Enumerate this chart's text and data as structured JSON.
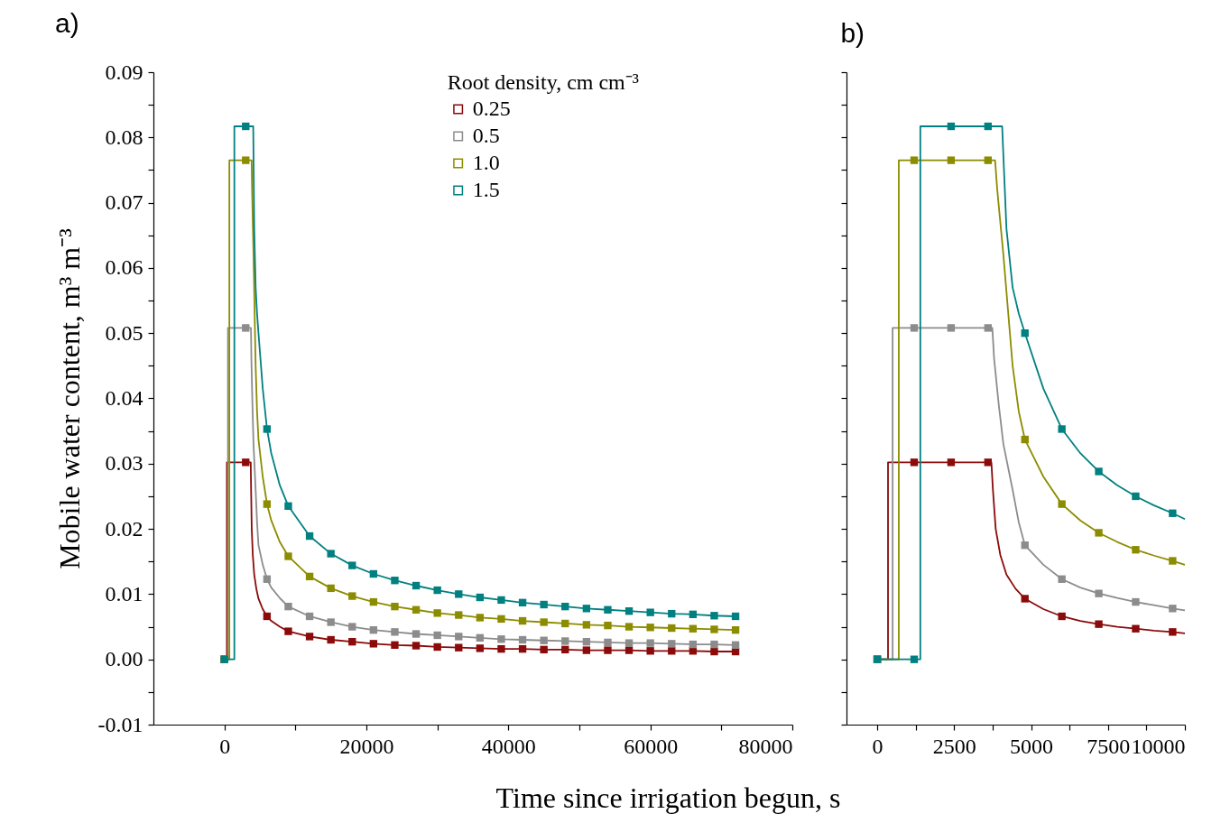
{
  "chart_data": [
    {
      "type": "line",
      "title": "a)",
      "xlabel": "Time since irrigation begun, s",
      "ylabel": "Mobile water content, m³ m⁻³",
      "legend_title": "Root density, cm cm⁻³",
      "legend": "top",
      "grid": false,
      "marker": "square",
      "xlim": [
        -10000,
        80000
      ],
      "xticks": [
        0,
        {
          "value": 10000,
          "label": null
        },
        20000,
        {
          "value": 30000,
          "label": null
        },
        40000,
        {
          "value": 50000,
          "label": null
        },
        60000,
        {
          "value": 70000,
          "label": null
        },
        80000
      ],
      "ylim": [
        -0.01,
        0.09
      ],
      "yticks": [
        -0.01,
        {
          "value": -0.005,
          "label": null
        },
        {
          "value": 0,
          "label": "0.00"
        },
        {
          "value": 0.005,
          "label": null
        },
        0.01,
        {
          "value": 0.015,
          "label": null
        },
        0.02,
        {
          "value": 0.025,
          "label": null
        },
        0.03,
        {
          "value": 0.035,
          "label": null
        },
        0.04,
        {
          "value": 0.045,
          "label": null
        },
        0.05,
        {
          "value": 0.055,
          "label": null
        },
        0.06,
        {
          "value": 0.065,
          "label": null
        },
        0.07,
        {
          "value": 0.075,
          "label": null
        },
        0.08,
        {
          "value": 0.085,
          "label": null
        },
        0.09
      ],
      "series": [
        {
          "name": "0.25",
          "type": "line",
          "marker": "none",
          "color": "#8b0a0a",
          "x": [
            0,
            350,
            350,
            3710,
            3760,
            3850,
            4000,
            4200,
            4500,
            4800,
            5400,
            6000,
            6600,
            7800,
            9000,
            12000,
            15000,
            18000,
            21000,
            24000,
            27000,
            30000,
            33000,
            36000,
            39000,
            42000,
            45000,
            48000,
            51000,
            54000,
            57000,
            60000,
            63000,
            66000,
            69000,
            72000
          ],
          "values": [
            0,
            0,
            0.0302,
            0.0302,
            0.026,
            0.02,
            0.016,
            0.013,
            0.0108,
            0.0093,
            0.0077,
            0.0066,
            0.0059,
            0.005,
            0.0043,
            0.0035,
            0.003,
            0.0027,
            0.0024,
            0.0022,
            0.0021,
            0.0019,
            0.0018,
            0.0017,
            0.0016,
            0.0016,
            0.0015,
            0.0015,
            0.0014,
            0.0014,
            0.0014,
            0.0013,
            0.0013,
            0.0013,
            0.0012,
            0.0012
          ]
        },
        {
          "name": "0.5",
          "type": "line",
          "marker": "none",
          "color": "#8c8c8c",
          "x": [
            0,
            500,
            500,
            3740,
            3800,
            3950,
            4100,
            4400,
            4600,
            4800,
            5400,
            6000,
            6600,
            7800,
            9000,
            12000,
            15000,
            18000,
            21000,
            24000,
            27000,
            30000,
            33000,
            36000,
            39000,
            42000,
            45000,
            48000,
            51000,
            54000,
            57000,
            60000,
            63000,
            66000,
            69000,
            72000
          ],
          "values": [
            0,
            0,
            0.0508,
            0.0508,
            0.046,
            0.039,
            0.033,
            0.026,
            0.021,
            0.0175,
            0.0145,
            0.0123,
            0.011,
            0.0094,
            0.0081,
            0.0066,
            0.0057,
            0.005,
            0.0045,
            0.0042,
            0.0039,
            0.0037,
            0.0035,
            0.0033,
            0.0031,
            0.003,
            0.0029,
            0.0028,
            0.0027,
            0.0026,
            0.0025,
            0.0025,
            0.0024,
            0.0023,
            0.0023,
            0.0022
          ]
        },
        {
          "name": "1.0",
          "type": "line",
          "marker": "none",
          "color": "#8c8c00",
          "x": [
            0,
            700,
            700,
            3830,
            3900,
            4100,
            4400,
            4600,
            4800,
            5400,
            6000,
            6600,
            7800,
            9000,
            12000,
            15000,
            18000,
            21000,
            24000,
            27000,
            30000,
            33000,
            36000,
            39000,
            42000,
            45000,
            48000,
            51000,
            54000,
            57000,
            60000,
            63000,
            66000,
            69000,
            72000
          ],
          "values": [
            0,
            0,
            0.0765,
            0.0765,
            0.072,
            0.062,
            0.045,
            0.038,
            0.0337,
            0.028,
            0.0238,
            0.0213,
            0.018,
            0.0158,
            0.0127,
            0.0109,
            0.0097,
            0.0088,
            0.0081,
            0.0076,
            0.0071,
            0.0068,
            0.0064,
            0.0062,
            0.0059,
            0.0057,
            0.0055,
            0.0053,
            0.0052,
            0.005,
            0.0049,
            0.0048,
            0.0047,
            0.0046,
            0.0045
          ]
        },
        {
          "name": "1.5",
          "type": "line",
          "marker": "none",
          "color": "#008080",
          "x": [
            0,
            1400,
            1400,
            4060,
            4200,
            4400,
            4600,
            4800,
            5400,
            6000,
            6600,
            7800,
            9000,
            12000,
            15000,
            18000,
            21000,
            24000,
            27000,
            30000,
            33000,
            36000,
            39000,
            42000,
            45000,
            48000,
            51000,
            54000,
            57000,
            60000,
            63000,
            66000,
            69000,
            72000
          ],
          "values": [
            0,
            0,
            0.0817,
            0.0817,
            0.066,
            0.057,
            0.053,
            0.05,
            0.0415,
            0.0353,
            0.0316,
            0.0267,
            0.0235,
            0.0189,
            0.0162,
            0.0144,
            0.0131,
            0.0121,
            0.0113,
            0.0106,
            0.01,
            0.0095,
            0.0091,
            0.0087,
            0.0084,
            0.0081,
            0.0078,
            0.0076,
            0.0074,
            0.0072,
            0.007,
            0.0069,
            0.0067,
            0.0066
          ]
        },
        {
          "type": "scatter",
          "color": "#8b0a0a",
          "x": [
            0,
            3000,
            6000,
            9000,
            12000,
            15000,
            18000,
            21000,
            24000,
            27000,
            30000,
            33000,
            36000,
            39000,
            42000,
            45000,
            48000,
            51000,
            54000,
            57000,
            60000,
            63000,
            66000,
            69000,
            72000
          ],
          "values": [
            0,
            0.0302,
            0.0066,
            0.0043,
            0.0035,
            0.003,
            0.0027,
            0.0024,
            0.0022,
            0.0021,
            0.0019,
            0.0018,
            0.0017,
            0.0016,
            0.0016,
            0.0015,
            0.0015,
            0.0014,
            0.0014,
            0.0014,
            0.0013,
            0.0013,
            0.0013,
            0.0012,
            0.0012
          ]
        },
        {
          "type": "scatter",
          "color": "#8c8c8c",
          "x": [
            0,
            3000,
            6000,
            9000,
            12000,
            15000,
            18000,
            21000,
            24000,
            27000,
            30000,
            33000,
            36000,
            39000,
            42000,
            45000,
            48000,
            51000,
            54000,
            57000,
            60000,
            63000,
            66000,
            69000,
            72000
          ],
          "values": [
            0,
            0.0508,
            0.0123,
            0.0081,
            0.0066,
            0.0057,
            0.005,
            0.0045,
            0.0042,
            0.0039,
            0.0037,
            0.0035,
            0.0033,
            0.0031,
            0.003,
            0.0029,
            0.0028,
            0.0027,
            0.0026,
            0.0025,
            0.0025,
            0.0024,
            0.0023,
            0.0023,
            0.0022
          ]
        },
        {
          "type": "scatter",
          "color": "#8c8c00",
          "x": [
            0,
            3000,
            6000,
            9000,
            12000,
            15000,
            18000,
            21000,
            24000,
            27000,
            30000,
            33000,
            36000,
            39000,
            42000,
            45000,
            48000,
            51000,
            54000,
            57000,
            60000,
            63000,
            66000,
            69000,
            72000
          ],
          "values": [
            0,
            0.0765,
            0.0238,
            0.0158,
            0.0127,
            0.0109,
            0.0097,
            0.0088,
            0.0081,
            0.0076,
            0.0071,
            0.0068,
            0.0064,
            0.0062,
            0.0059,
            0.0057,
            0.0055,
            0.0053,
            0.0052,
            0.005,
            0.0049,
            0.0048,
            0.0047,
            0.0046,
            0.0045
          ]
        },
        {
          "type": "scatter",
          "color": "#008080",
          "x": [
            0,
            3000,
            6000,
            9000,
            12000,
            15000,
            18000,
            21000,
            24000,
            27000,
            30000,
            33000,
            36000,
            39000,
            42000,
            45000,
            48000,
            51000,
            54000,
            57000,
            60000,
            63000,
            66000,
            69000,
            72000
          ],
          "values": [
            0,
            0.0817,
            0.0353,
            0.0235,
            0.0189,
            0.0162,
            0.0144,
            0.0131,
            0.0121,
            0.0113,
            0.0106,
            0.01,
            0.0095,
            0.0091,
            0.0087,
            0.0084,
            0.0081,
            0.0078,
            0.0076,
            0.0074,
            0.0072,
            0.007,
            0.0069,
            0.0067,
            0.0066
          ]
        }
      ]
    },
    {
      "type": "line",
      "title": "b)",
      "grid": false,
      "marker": "square",
      "tick_labels": "x",
      "xlim": [
        -1000,
        10000
      ],
      "xticks": [
        0,
        {
          "value": 1250,
          "label": null
        },
        2500,
        {
          "value": 3750,
          "label": null
        },
        5000,
        {
          "value": 6250,
          "label": null
        },
        7500,
        {
          "value": 8750,
          "label": null
        },
        10000
      ],
      "ylim": [
        -0.01,
        0.09
      ],
      "yticks": [
        -0.01,
        {
          "value": -0.005,
          "label": null
        },
        0,
        {
          "value": 0.005,
          "label": null
        },
        0.01,
        {
          "value": 0.015,
          "label": null
        },
        0.02,
        {
          "value": 0.025,
          "label": null
        },
        0.03,
        {
          "value": 0.035,
          "label": null
        },
        0.04,
        {
          "value": 0.045,
          "label": null
        },
        0.05,
        {
          "value": 0.055,
          "label": null
        },
        0.06,
        {
          "value": 0.065,
          "label": null
        },
        0.07,
        {
          "value": 0.075,
          "label": null
        },
        0.08,
        {
          "value": 0.085,
          "label": null
        },
        0.09
      ],
      "series": [
        {
          "type": "line",
          "marker": "none",
          "color": "#8b0a0a",
          "x": [
            0,
            350,
            350,
            3710,
            3760,
            3850,
            4000,
            4200,
            4500,
            4800,
            5400,
            6000,
            6600,
            7200,
            7800,
            8400,
            9000,
            9600,
            10000
          ],
          "values": [
            0,
            0,
            0.0302,
            0.0302,
            0.026,
            0.02,
            0.016,
            0.013,
            0.0108,
            0.0093,
            0.0077,
            0.0066,
            0.0059,
            0.0054,
            0.005,
            0.0047,
            0.0044,
            0.0042,
            0.004
          ]
        },
        {
          "type": "line",
          "marker": "none",
          "color": "#8c8c8c",
          "x": [
            0,
            500,
            500,
            3740,
            3800,
            3950,
            4100,
            4400,
            4600,
            4800,
            5400,
            6000,
            6600,
            7200,
            7800,
            8400,
            9000,
            9600,
            10000
          ],
          "values": [
            0,
            0,
            0.0508,
            0.0508,
            0.046,
            0.039,
            0.033,
            0.026,
            0.021,
            0.0175,
            0.0145,
            0.0123,
            0.011,
            0.0101,
            0.0094,
            0.0088,
            0.0083,
            0.0078,
            0.0075
          ]
        },
        {
          "type": "line",
          "marker": "none",
          "color": "#8c8c00",
          "x": [
            0,
            700,
            700,
            3830,
            3900,
            4100,
            4400,
            4600,
            4800,
            5400,
            6000,
            6600,
            7200,
            7800,
            8400,
            9000,
            9600,
            10000
          ],
          "values": [
            0,
            0,
            0.0765,
            0.0765,
            0.072,
            0.062,
            0.045,
            0.038,
            0.0337,
            0.028,
            0.0238,
            0.0213,
            0.0194,
            0.018,
            0.0168,
            0.0159,
            0.0151,
            0.0145
          ]
        },
        {
          "type": "line",
          "marker": "none",
          "color": "#008080",
          "x": [
            0,
            1400,
            1400,
            4060,
            4200,
            4400,
            4600,
            4800,
            5400,
            6000,
            6600,
            7200,
            7800,
            8400,
            9000,
            9600,
            10000
          ],
          "values": [
            0,
            0,
            0.0817,
            0.0817,
            0.066,
            0.057,
            0.053,
            0.05,
            0.0415,
            0.0353,
            0.0316,
            0.0288,
            0.0267,
            0.025,
            0.0236,
            0.0224,
            0.0215
          ]
        },
        {
          "type": "scatter",
          "color": "#8b0a0a",
          "x": [
            0,
            1200,
            2400,
            3600,
            4800,
            6000,
            7200,
            8400,
            9600
          ],
          "values": [
            0,
            0.0302,
            0.0302,
            0.0302,
            0.0093,
            0.0066,
            0.0054,
            0.0047,
            0.0042
          ]
        },
        {
          "type": "scatter",
          "color": "#8c8c8c",
          "x": [
            0,
            1200,
            2400,
            3600,
            4800,
            6000,
            7200,
            8400,
            9600
          ],
          "values": [
            0,
            0.0508,
            0.0508,
            0.0508,
            0.0175,
            0.0123,
            0.0101,
            0.0088,
            0.0078
          ]
        },
        {
          "type": "scatter",
          "color": "#8c8c00",
          "x": [
            0,
            1200,
            2400,
            3600,
            4800,
            6000,
            7200,
            8400,
            9600
          ],
          "values": [
            0,
            0.0765,
            0.0765,
            0.0765,
            0.0337,
            0.0238,
            0.0194,
            0.0168,
            0.0151
          ]
        },
        {
          "type": "scatter",
          "color": "#008080",
          "x": [
            0,
            1200,
            2400,
            3600,
            4800,
            6000,
            7200,
            8400,
            9600
          ],
          "values": [
            0,
            0,
            0.0817,
            0.0817,
            0.05,
            0.0353,
            0.0288,
            0.025,
            0.0224
          ]
        }
      ]
    }
  ]
}
